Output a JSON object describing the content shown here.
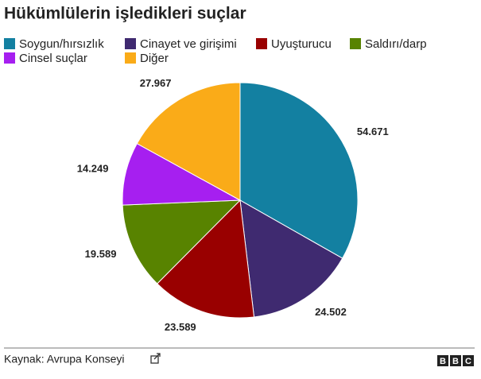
{
  "chart_data": {
    "type": "pie",
    "title": "Hükümlülerin işledikleri suçlar",
    "categories": [
      "Soygun/hırsızlık",
      "Cinayet ve girişimi",
      "Uyuşturucu",
      "Saldırı/darp",
      "Cinsel suçlar",
      "Diğer"
    ],
    "values": [
      54671,
      24502,
      23589,
      19589,
      14249,
      27967
    ],
    "value_labels": [
      "54.671",
      "24.502",
      "23.589",
      "19.589",
      "14.249",
      "27.967"
    ],
    "colors": [
      "#1380a1",
      "#3f2a70",
      "#990000",
      "#588300",
      "#a61ff0",
      "#faab18"
    ]
  },
  "footer": {
    "source": "Kaynak: Avrupa Konseyi",
    "logo": [
      "B",
      "B",
      "C"
    ]
  }
}
